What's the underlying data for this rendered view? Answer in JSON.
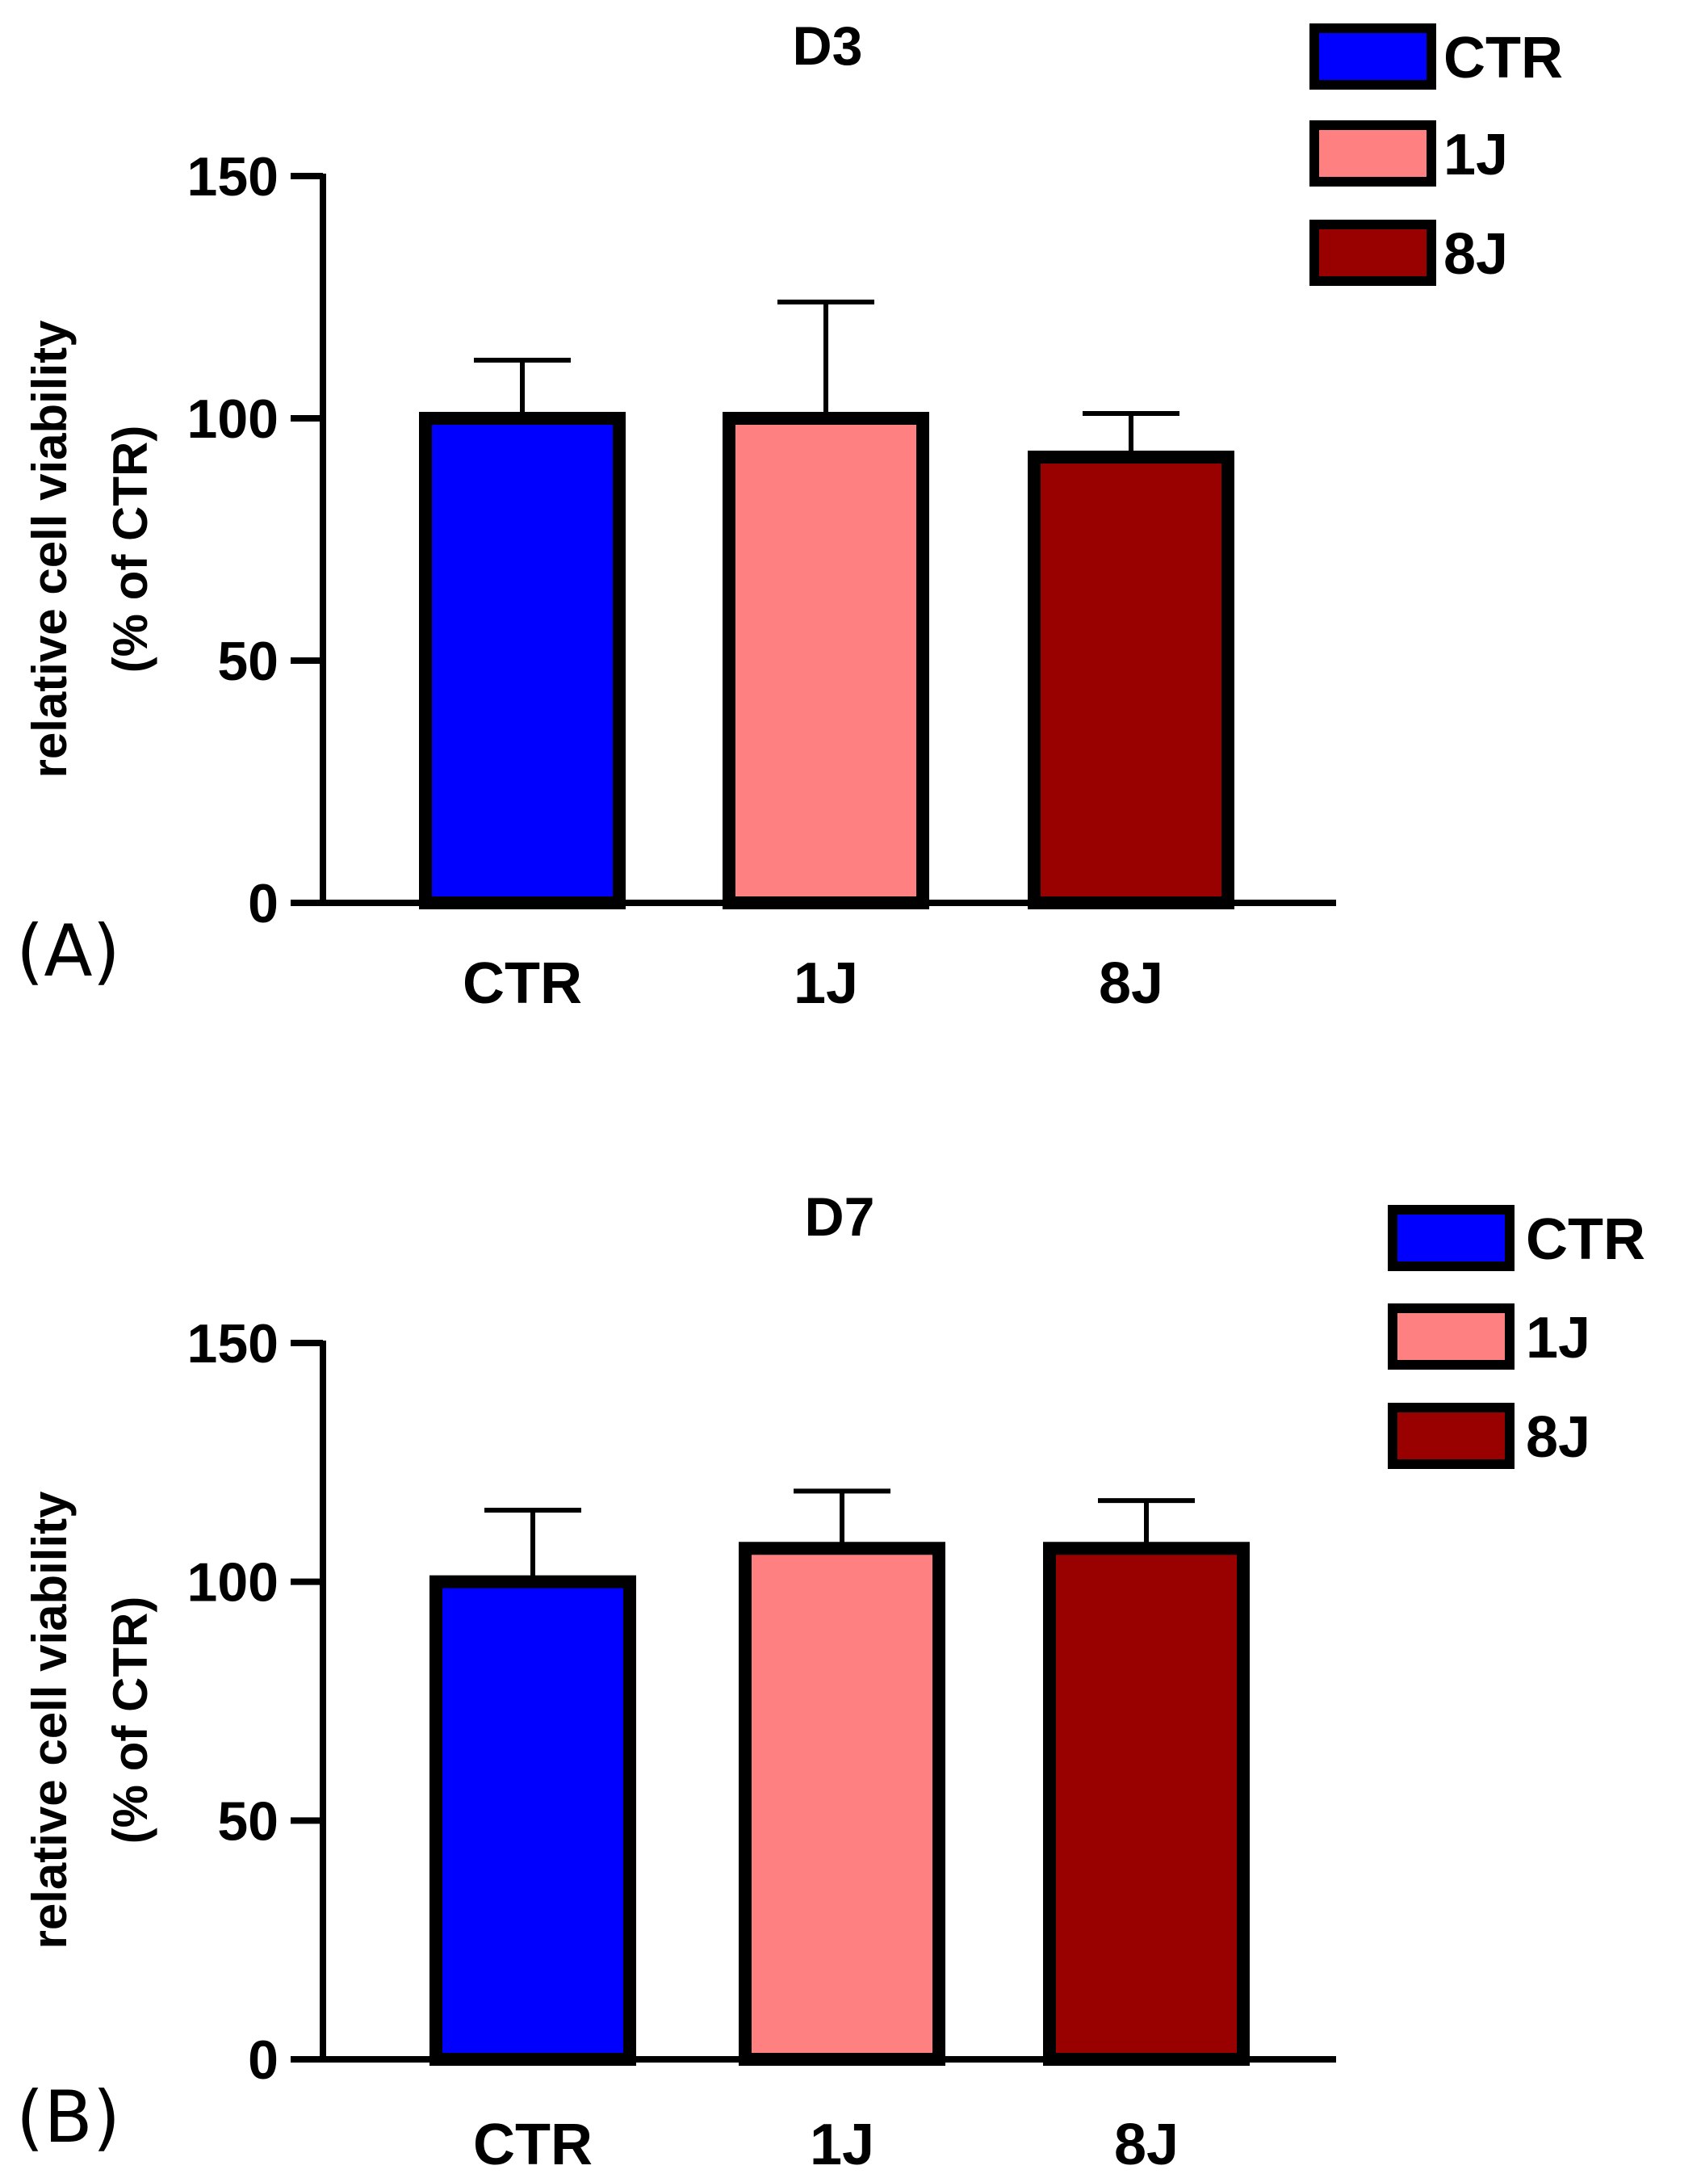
{
  "chart_data": [
    {
      "type": "bar",
      "panel_label": "(A)",
      "title": "D3",
      "categories": [
        "CTR",
        "1J",
        "8J"
      ],
      "values": [
        100,
        100,
        92
      ],
      "error_bars_upper": [
        112,
        124,
        101
      ],
      "colors": [
        "#0000ff",
        "#ff8080",
        "#990000"
      ],
      "ylabel_line1": "relative cell viability",
      "ylabel_line2": "(% of CTR)",
      "xlabel": "",
      "ylim": [
        0,
        150
      ],
      "yticks": [
        0,
        50,
        100,
        150
      ],
      "ytick_labels": [
        "0",
        "50",
        "100",
        "150"
      ],
      "legend": [
        {
          "label": "CTR",
          "color": "#0000ff"
        },
        {
          "label": "1J",
          "color": "#ff8080"
        },
        {
          "label": "8J",
          "color": "#990000"
        }
      ],
      "legend_position": "top-right",
      "grid": false
    },
    {
      "type": "bar",
      "panel_label": "(B)",
      "title": "D7",
      "categories": [
        "CTR",
        "1J",
        "8J"
      ],
      "values": [
        100,
        107,
        107
      ],
      "error_bars_upper": [
        115,
        119,
        117
      ],
      "colors": [
        "#0000ff",
        "#ff8080",
        "#990000"
      ],
      "ylabel_line1": "relative cell viability",
      "ylabel_line2": "(% of CTR)",
      "xlabel": "",
      "ylim": [
        0,
        150
      ],
      "yticks": [
        0,
        50,
        100,
        150
      ],
      "ytick_labels": [
        "0",
        "50",
        "100",
        "150"
      ],
      "legend": [
        {
          "label": "CTR",
          "color": "#0000ff"
        },
        {
          "label": "1J",
          "color": "#ff8080"
        },
        {
          "label": "8J",
          "color": "#990000"
        }
      ],
      "legend_position": "top-right",
      "grid": false
    }
  ]
}
